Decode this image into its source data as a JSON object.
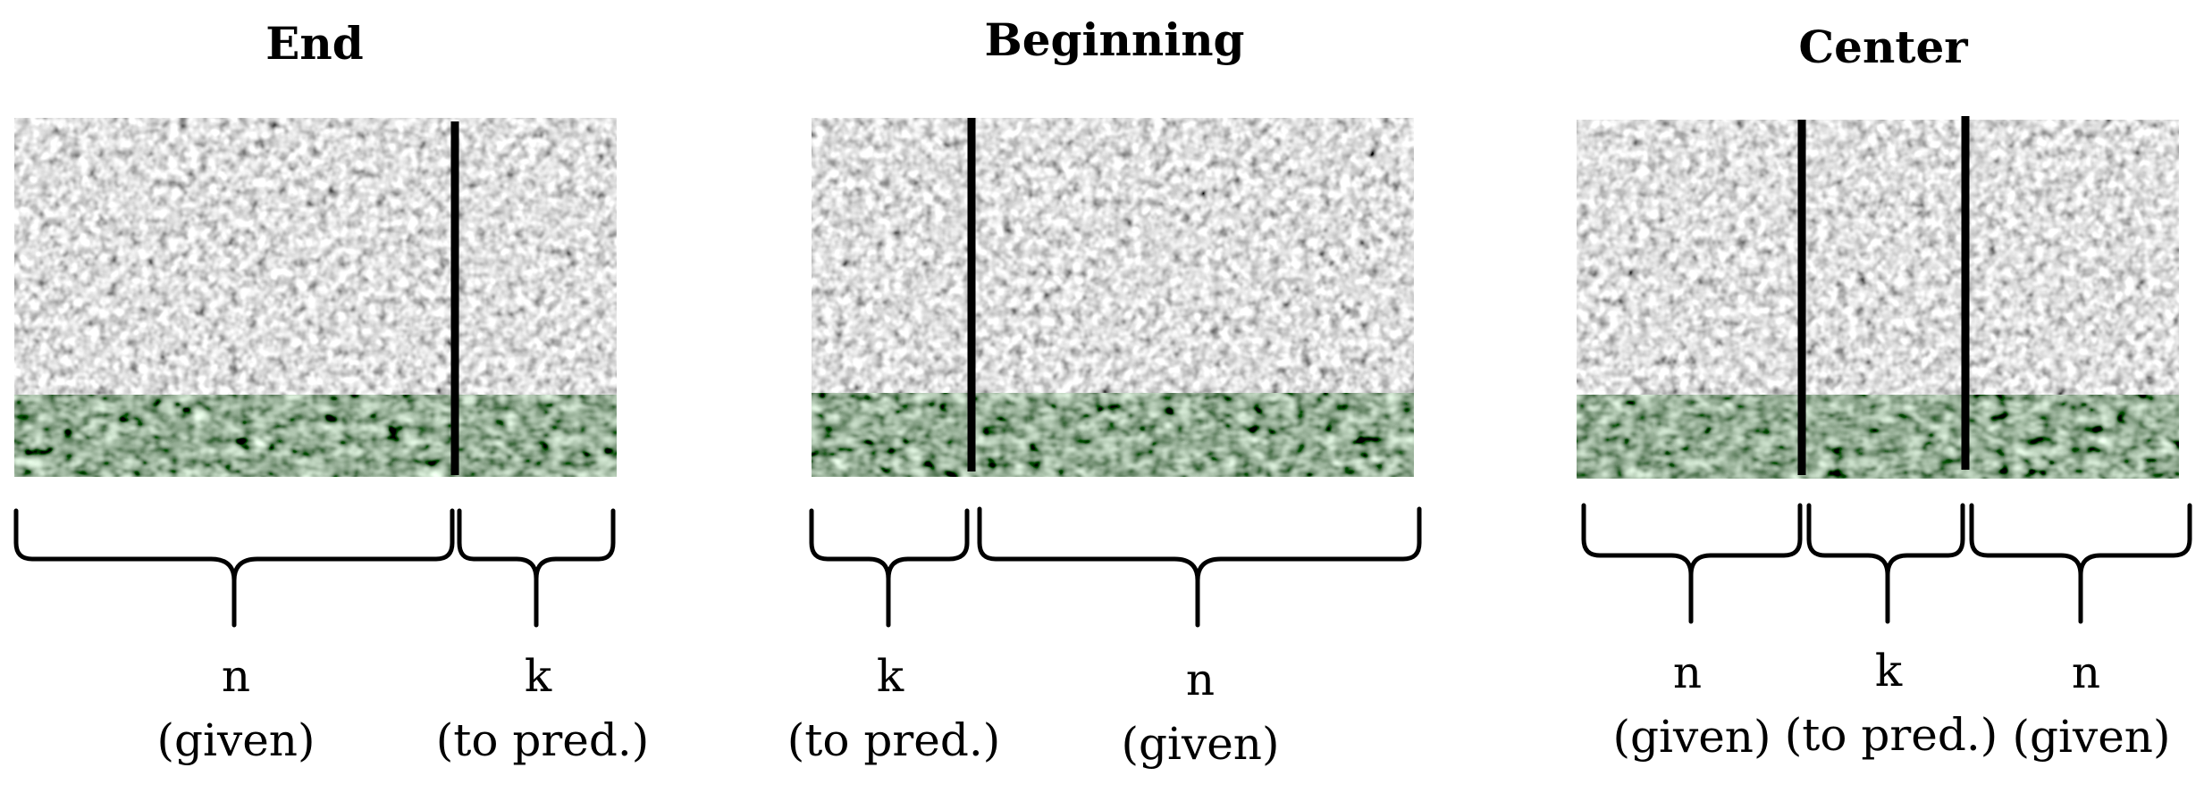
{
  "panels": [
    {
      "title": "End",
      "segments": [
        {
          "symbol": "n",
          "role": "(given)"
        },
        {
          "symbol": "k",
          "role": "(to pred.)"
        }
      ]
    },
    {
      "title": "Beginning",
      "segments": [
        {
          "symbol": "k",
          "role": "(to pred.)"
        },
        {
          "symbol": "n",
          "role": "(given)"
        }
      ]
    },
    {
      "title": "Center",
      "segments": [
        {
          "symbol": "n",
          "role": "(given)"
        },
        {
          "symbol": "k",
          "role": "(to pred.)"
        },
        {
          "symbol": "n",
          "role": "(given)"
        }
      ]
    }
  ],
  "colors": {
    "noise_light": "#c8c8c8",
    "noise_dark": "#4c4c4c",
    "divider": "#000000",
    "text": "#000000"
  }
}
